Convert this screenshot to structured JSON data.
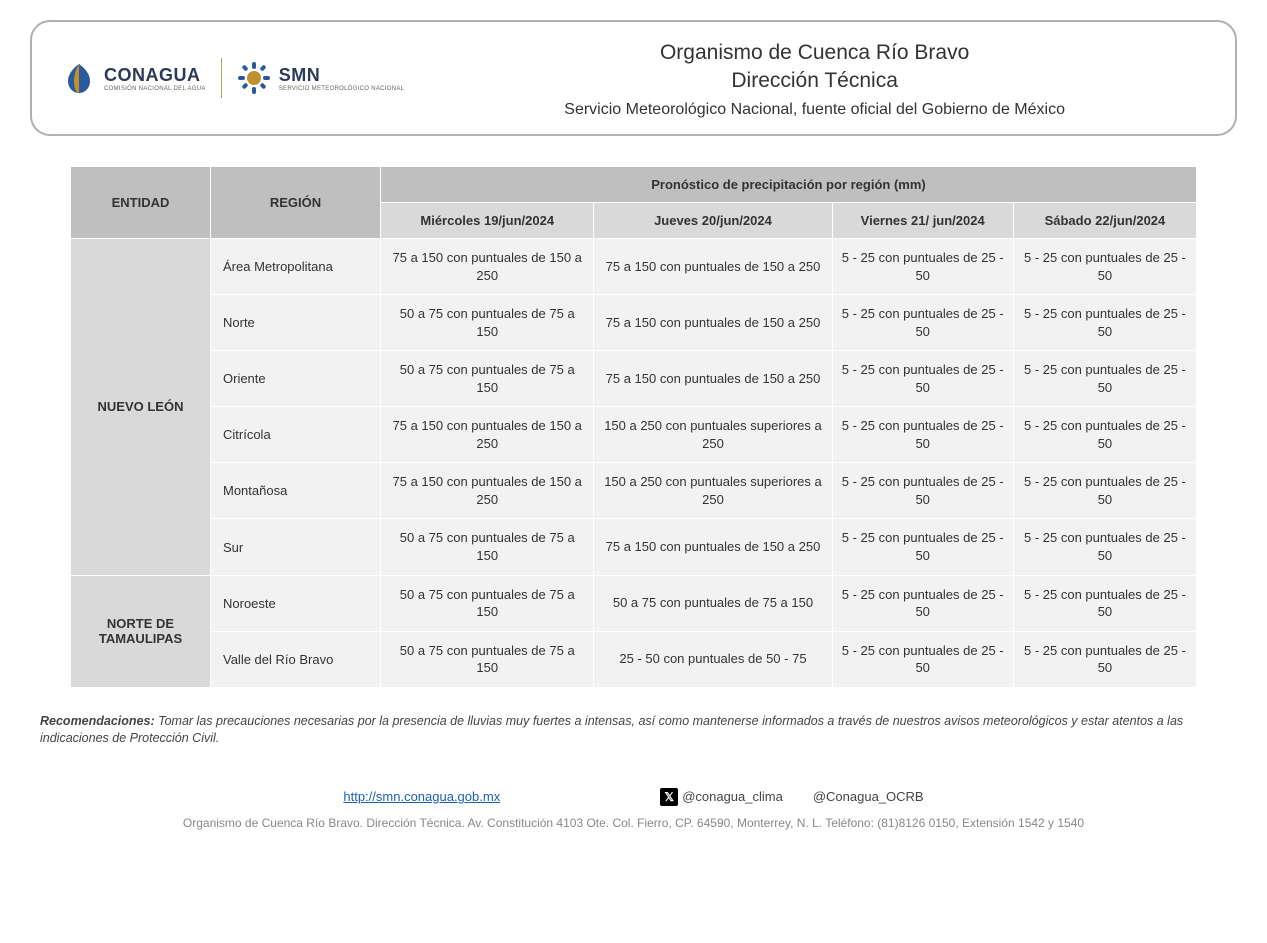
{
  "logos": {
    "conagua_name": "CONAGUA",
    "conagua_sub": "COMISIÓN NACIONAL DEL AGUA",
    "smn_name": "SMN",
    "smn_sub": "SERVICIO METEOROLÓGICO NACIONAL"
  },
  "header": {
    "title1": "Organismo de Cuenca Río Bravo",
    "title2": "Dirección Técnica",
    "subtitle": "Servicio Meteorológico Nacional, fuente oficial del Gobierno de México"
  },
  "table": {
    "col_entity": "ENTIDAD",
    "col_region": "REGIÓN",
    "col_forecast": "Pronóstico de precipitación por región (mm)",
    "dates": [
      "Miércoles 19/jun/2024",
      "Jueves 20/jun/2024",
      "Viernes 21/ jun/2024",
      "Sábado 22/jun/2024"
    ],
    "entities": [
      {
        "name": "NUEVO LEÓN",
        "regions": [
          {
            "name": "Área Metropolitana",
            "vals": [
              "75 a 150 con puntuales de 150 a 250",
              "75 a 150 con puntuales de 150 a 250",
              "5 - 25 con puntuales de 25 - 50",
              "5 - 25 con puntuales de 25 - 50"
            ]
          },
          {
            "name": "Norte",
            "vals": [
              "50 a 75 con puntuales de 75 a 150",
              "75 a 150 con puntuales de 150 a 250",
              "5 - 25 con puntuales de 25 - 50",
              "5 - 25 con puntuales de 25 - 50"
            ]
          },
          {
            "name": "Oriente",
            "vals": [
              "50 a 75 con puntuales de 75 a 150",
              "75 a 150 con puntuales de 150 a 250",
              "5 - 25 con puntuales de 25 - 50",
              "5 - 25 con puntuales de 25 - 50"
            ]
          },
          {
            "name": "Citrícola",
            "vals": [
              "75 a 150 con puntuales de 150 a 250",
              "150 a 250 con puntuales superiores a 250",
              "5 - 25 con puntuales de 25 - 50",
              "5 - 25 con puntuales de 25 - 50"
            ]
          },
          {
            "name": "Montañosa",
            "vals": [
              "75 a 150 con puntuales de 150 a 250",
              "150 a 250 con puntuales superiores a 250",
              "5 - 25 con puntuales de 25 - 50",
              "5 - 25 con puntuales de 25 - 50"
            ]
          },
          {
            "name": "Sur",
            "vals": [
              "50 a 75 con puntuales de 75 a 150",
              "75 a 150 con puntuales de 150 a 250",
              "5 - 25 con puntuales de 25 - 50",
              "5 - 25 con puntuales de 25 - 50"
            ]
          }
        ]
      },
      {
        "name": "NORTE DE TAMAULIPAS",
        "regions": [
          {
            "name": "Noroeste",
            "vals": [
              "50 a 75 con puntuales de 75 a 150",
              "50 a 75 con puntuales de 75 a 150",
              "5 - 25 con puntuales de 25 - 50",
              "5 - 25 con puntuales de 25 - 50"
            ]
          },
          {
            "name": "Valle del Río Bravo",
            "vals": [
              "50 a 75 con puntuales de 75 a 150",
              "25 - 50 con puntuales de 50 - 75",
              "5 - 25 con puntuales de 25 - 50",
              "5 - 25 con puntuales de 25 - 50"
            ]
          }
        ]
      }
    ]
  },
  "recommendations": {
    "label": "Recomendaciones:",
    "text": " Tomar las precauciones necesarias por la presencia de lluvias muy fuertes a intensas, así como mantenerse informados a través de nuestros avisos meteorológicos y estar atentos a las indicaciones de Protección Civil."
  },
  "footer": {
    "url": "http://smn.conagua.gob.mx",
    "handle1": "@conagua_clima",
    "handle2": "@Conagua_OCRB",
    "address": "Organismo de Cuenca Río Bravo. Dirección Técnica. Av. Constitución 4103 Ote.  Col. Fierro, CP. 64590, Monterrey, N. L. Teléfono: (81)8126 0150, Extensión 1542 y 1540"
  },
  "colors": {
    "header_border": "#b0b0b0",
    "th_bg": "#bfbfbf",
    "th_date_bg": "#d9d9d9",
    "cell_bg": "#f2f2f2",
    "link": "#1a5fb4"
  }
}
